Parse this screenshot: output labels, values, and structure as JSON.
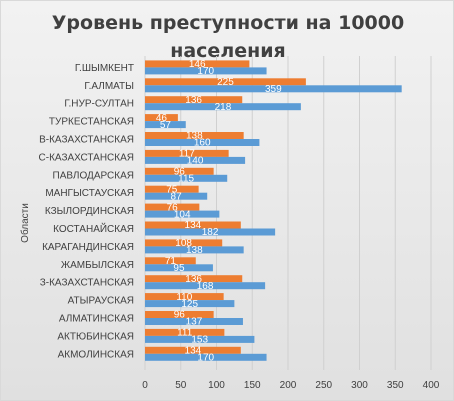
{
  "chart_data": {
    "type": "bar",
    "orientation": "horizontal",
    "title": "Уровень преступности на 10000\nнаселения",
    "ylabel": "Области",
    "xlabel": "",
    "xlim": [
      0,
      400
    ],
    "xticks": [
      0,
      50,
      100,
      150,
      200,
      250,
      300,
      350,
      400
    ],
    "grid": "vertical",
    "legend": "none",
    "categories": [
      "Г.ШЫМКЕНТ",
      "Г.АЛМАТЫ",
      "Г.НУР-СУЛТАН",
      "ТУРКЕСТАНСКАЯ",
      "В-КАЗАХСТАНСКАЯ",
      "С-КАЗАХСТАНСКАЯ",
      "ПАВЛОДАРСКАЯ",
      "МАНГЫСТАУСКАЯ",
      "КЗЫЛОРДИНСКАЯ",
      "КОСТАНАЙСКАЯ",
      "КАРАГАНДИНСКАЯ",
      "ЖАМБЫЛСКАЯ",
      "З-КАЗАХСТАНСКАЯ",
      "АТЫРАУСКАЯ",
      "АЛМАТИНСКАЯ",
      "АКТЮБИНСКАЯ",
      "АКМОЛИНСКАЯ"
    ],
    "series": [
      {
        "color": "#ed7d31",
        "values": [
          146,
          225,
          136,
          46,
          138,
          117,
          96,
          75,
          76,
          134,
          108,
          71,
          136,
          110,
          96,
          111,
          134
        ]
      },
      {
        "color": "#5b9bd5",
        "values": [
          170,
          359,
          218,
          57,
          160,
          140,
          115,
          87,
          104,
          182,
          138,
          95,
          168,
          125,
          137,
          153,
          170
        ]
      }
    ]
  }
}
